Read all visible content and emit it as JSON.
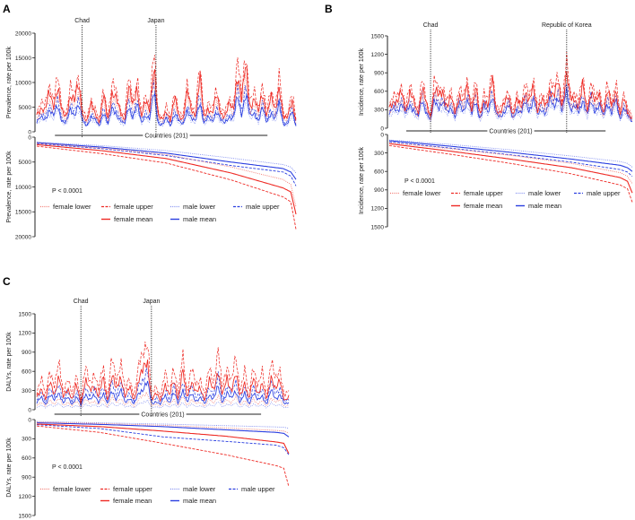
{
  "colors": {
    "female": "#ee2a24",
    "female_light": "#f27a72",
    "male": "#2b3fe0",
    "male_light": "#7f8cf0",
    "axis": "#222222"
  },
  "legend": {
    "female_lower": "female lower",
    "female_upper": "female upper",
    "female_mean": "female mean",
    "male_lower": "male lower",
    "male_upper": "male upper",
    "male_mean": "male mean"
  },
  "chart_data": [
    {
      "panel": "A",
      "type": "line",
      "ylabel": "Prevalence, rate per 100k",
      "xlabel": "Countries (201)",
      "ylim": [
        0,
        20000
      ],
      "yticks": [
        "0",
        "5000",
        "10000",
        "15000",
        "20000"
      ],
      "annotations": [
        {
          "label": "Chad",
          "country_index": 35
        },
        {
          "label": "Japan",
          "country_index": 92
        }
      ],
      "p_value": "P <  0.0001",
      "top": {
        "female_mean": [
          3500,
          5000,
          4200,
          8000,
          5500,
          9000,
          4000,
          3000,
          7500,
          6000,
          10000,
          3500,
          2000,
          5500,
          4000,
          1800,
          7500,
          2500,
          8000,
          6500,
          4000,
          2500,
          9000,
          5000,
          9500,
          3000,
          6000,
          4500,
          14000,
          3000,
          2500,
          4500,
          2000,
          7000,
          3500,
          2500,
          8000,
          4500,
          3500,
          11000,
          3000,
          5000,
          3500,
          7500,
          4000,
          3000,
          5500,
          4500,
          12000,
          6000,
          14000,
          5000,
          6500,
          4000,
          8500,
          3000,
          7000,
          4500,
          9500,
          2500,
          3000,
          7000,
          2000
        ],
        "male_ratio": 0.58,
        "lower_ratio": 0.82,
        "upper_ratio": 1.22
      },
      "sorted": {
        "female_lower": [
          [
            0,
            1200
          ],
          [
            50,
            2200
          ],
          [
            100,
            3500
          ],
          [
            150,
            6000
          ],
          [
            190,
            8500
          ],
          [
            196,
            9500
          ],
          [
            200,
            14000
          ]
        ],
        "female_mean": [
          [
            0,
            1500
          ],
          [
            50,
            2700
          ],
          [
            100,
            4300
          ],
          [
            150,
            7200
          ],
          [
            190,
            10200
          ],
          [
            196,
            11000
          ],
          [
            200,
            15500
          ]
        ],
        "female_upper": [
          [
            0,
            1800
          ],
          [
            50,
            3300
          ],
          [
            100,
            5200
          ],
          [
            150,
            8600
          ],
          [
            190,
            12000
          ],
          [
            196,
            13000
          ],
          [
            200,
            18500
          ]
        ],
        "male_lower": [
          [
            0,
            1000
          ],
          [
            50,
            1700
          ],
          [
            100,
            2700
          ],
          [
            150,
            4200
          ],
          [
            190,
            5500
          ],
          [
            196,
            6000
          ],
          [
            200,
            7200
          ]
        ],
        "male_mean": [
          [
            0,
            1100
          ],
          [
            50,
            2000
          ],
          [
            100,
            3200
          ],
          [
            150,
            5000
          ],
          [
            190,
            6300
          ],
          [
            196,
            7000
          ],
          [
            200,
            8500
          ]
        ],
        "male_upper": [
          [
            0,
            1300
          ],
          [
            50,
            2300
          ],
          [
            100,
            3700
          ],
          [
            150,
            5700
          ],
          [
            190,
            7000
          ],
          [
            196,
            7800
          ],
          [
            200,
            9800
          ]
        ]
      }
    },
    {
      "panel": "B",
      "type": "line",
      "ylabel": "Incidence, rate per 100k",
      "xlabel": "Countries (201)",
      "ylim": [
        0,
        1500
      ],
      "yticks": [
        "0",
        "300",
        "600",
        "900",
        "1200",
        "1500"
      ],
      "annotations": [
        {
          "label": "Chad",
          "country_index": 34
        },
        {
          "label": "Republic of Korea",
          "country_index": 146
        }
      ],
      "p_value": "P <  0.0001",
      "top": {
        "female_mean": [
          350,
          450,
          400,
          600,
          300,
          550,
          420,
          250,
          650,
          380,
          180,
          650,
          500,
          600,
          350,
          500,
          250,
          550,
          400,
          700,
          300,
          650,
          200,
          500,
          350,
          800,
          300,
          250,
          400,
          550,
          200,
          450,
          350,
          600,
          400,
          700,
          300,
          450,
          350,
          650,
          500,
          750,
          350,
          900,
          450,
          500,
          350,
          700,
          300,
          600,
          400,
          550,
          250,
          600,
          350,
          650,
          200,
          500,
          250,
          150
        ],
        "male_ratio": 0.7,
        "lower_ratio": 0.8,
        "upper_ratio": 1.2
      },
      "sorted": {
        "female_lower": [
          [
            0,
            130
          ],
          [
            50,
            230
          ],
          [
            100,
            340
          ],
          [
            150,
            470
          ],
          [
            190,
            620
          ],
          [
            196,
            680
          ],
          [
            200,
            800
          ]
        ],
        "female_mean": [
          [
            0,
            150
          ],
          [
            50,
            270
          ],
          [
            100,
            400
          ],
          [
            150,
            540
          ],
          [
            190,
            700
          ],
          [
            196,
            760
          ],
          [
            200,
            950
          ]
        ],
        "female_upper": [
          [
            0,
            180
          ],
          [
            50,
            320
          ],
          [
            100,
            470
          ],
          [
            150,
            640
          ],
          [
            190,
            820
          ],
          [
            196,
            880
          ],
          [
            200,
            1100
          ]
        ],
        "male_lower": [
          [
            0,
            90
          ],
          [
            50,
            160
          ],
          [
            100,
            250
          ],
          [
            150,
            350
          ],
          [
            190,
            440
          ],
          [
            196,
            470
          ],
          [
            200,
            530
          ]
        ],
        "male_mean": [
          [
            0,
            100
          ],
          [
            50,
            190
          ],
          [
            100,
            290
          ],
          [
            150,
            400
          ],
          [
            190,
            500
          ],
          [
            196,
            540
          ],
          [
            200,
            600
          ]
        ],
        "male_upper": [
          [
            0,
            120
          ],
          [
            50,
            220
          ],
          [
            100,
            330
          ],
          [
            150,
            450
          ],
          [
            190,
            570
          ],
          [
            196,
            610
          ],
          [
            200,
            680
          ]
        ]
      }
    },
    {
      "panel": "C",
      "type": "line",
      "ylabel": "DALYs, rate per 100k",
      "xlabel": "Countries (201)",
      "ylim": [
        0,
        1500
      ],
      "yticks": [
        "0",
        "300",
        "600",
        "900",
        "1200",
        "1500"
      ],
      "annotations": [
        {
          "label": "Chad",
          "country_index": 35
        },
        {
          "label": "Japan",
          "country_index": 91
        }
      ],
      "p_value": "P <  0.0001",
      "top": {
        "female_mean": [
          200,
          350,
          150,
          450,
          250,
          500,
          200,
          350,
          150,
          400,
          100,
          450,
          300,
          400,
          200,
          500,
          150,
          550,
          300,
          550,
          200,
          350,
          150,
          450,
          600,
          800,
          150,
          250,
          150,
          400,
          200,
          500,
          150,
          600,
          200,
          450,
          250,
          350,
          150,
          450,
          300,
          650,
          200,
          500,
          300,
          550,
          200,
          450,
          150,
          500,
          250,
          400,
          150,
          550,
          300,
          450,
          150,
          200
        ],
        "male_ratio": 0.55,
        "lower_ratio": 0.35,
        "upper_ratio": 1.45
      },
      "sorted": {
        "female_lower": [
          [
            0,
            40
          ],
          [
            50,
            60
          ],
          [
            100,
            90
          ],
          [
            150,
            130
          ],
          [
            190,
            170
          ],
          [
            196,
            180
          ],
          [
            200,
            210
          ]
        ],
        "female_mean": [
          [
            0,
            70
          ],
          [
            50,
            110
          ],
          [
            100,
            180
          ],
          [
            150,
            260
          ],
          [
            190,
            350
          ],
          [
            196,
            370
          ],
          [
            200,
            530
          ]
        ],
        "female_upper": [
          [
            0,
            100
          ],
          [
            50,
            200
          ],
          [
            100,
            370
          ],
          [
            150,
            550
          ],
          [
            190,
            720
          ],
          [
            196,
            760
          ],
          [
            200,
            1050
          ]
        ],
        "male_lower": [
          [
            0,
            30
          ],
          [
            50,
            50
          ],
          [
            100,
            70
          ],
          [
            150,
            95
          ],
          [
            190,
            115
          ],
          [
            196,
            120
          ],
          [
            200,
            135
          ]
        ],
        "male_mean": [
          [
            0,
            50
          ],
          [
            50,
            75
          ],
          [
            100,
            110
          ],
          [
            150,
            160
          ],
          [
            190,
            200
          ],
          [
            196,
            215
          ],
          [
            200,
            270
          ]
        ],
        "male_upper": [
          [
            0,
            80
          ],
          [
            50,
            140
          ],
          [
            100,
            270
          ],
          [
            150,
            340
          ],
          [
            190,
            400
          ],
          [
            196,
            440
          ],
          [
            200,
            550
          ]
        ]
      }
    }
  ]
}
